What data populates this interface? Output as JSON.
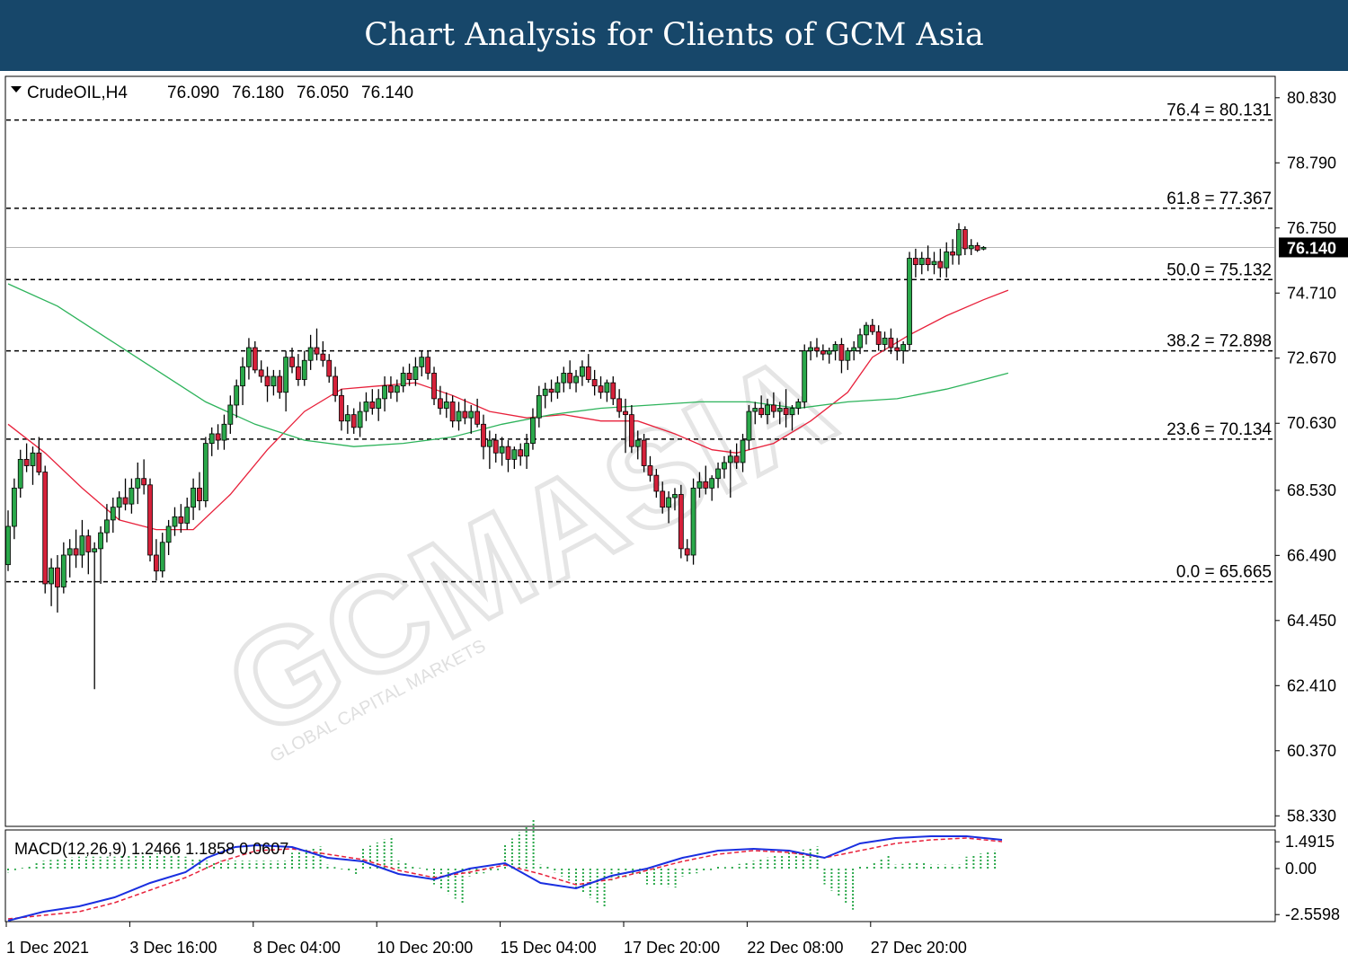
{
  "header": {
    "title": "Chart Analysis for Clients of GCM Asia"
  },
  "chart_data": {
    "type": "candlestick",
    "symbol_line": {
      "symbol": "CrudeOIL,H4",
      "ohlc": [
        "76.090",
        "76.180",
        "76.050",
        "76.140"
      ]
    },
    "price_axis": {
      "ticks": [
        80.83,
        78.79,
        76.75,
        74.71,
        72.67,
        70.63,
        68.53,
        66.49,
        64.45,
        62.41,
        60.37,
        58.33
      ],
      "tick_labels": [
        "80.830",
        "78.790",
        "76.750",
        "74.710",
        "72.670",
        "70.630",
        "68.530",
        "66.490",
        "64.450",
        "62.410",
        "60.370",
        "58.330"
      ],
      "range": [
        58.0,
        81.5
      ]
    },
    "current_price": {
      "value": 76.14,
      "label": "76.140"
    },
    "fibonacci": [
      {
        "level": "76.4",
        "price": 80.131,
        "label": "76.4 = 80.131"
      },
      {
        "level": "61.8",
        "price": 77.367,
        "label": "61.8 = 77.367"
      },
      {
        "level": "50.0",
        "price": 75.132,
        "label": "50.0 = 75.132"
      },
      {
        "level": "38.2",
        "price": 72.898,
        "label": "38.2 = 72.898"
      },
      {
        "level": "23.6",
        "price": 70.134,
        "label": "23.6 = 70.134"
      },
      {
        "level": "0.0",
        "price": 65.665,
        "label": "0.0 = 65.665"
      }
    ],
    "time_axis": {
      "labels": [
        "1 Dec 2021",
        "3 Dec 16:00",
        "8 Dec 04:00",
        "10 Dec 20:00",
        "15 Dec 04:00",
        "17 Dec 20:00",
        "22 Dec 08:00",
        "27 Dec 20:00"
      ],
      "label_bar_index": [
        0,
        20,
        40,
        60,
        80,
        100,
        120,
        140
      ]
    },
    "candles": [
      [
        66.2,
        67.9,
        66.0,
        67.4
      ],
      [
        67.4,
        68.9,
        67.0,
        68.6
      ],
      [
        68.6,
        69.8,
        68.3,
        69.5
      ],
      [
        69.5,
        70.0,
        69.1,
        69.3
      ],
      [
        69.3,
        69.9,
        68.7,
        69.7
      ],
      [
        69.7,
        70.2,
        69.0,
        69.1
      ],
      [
        69.1,
        69.3,
        65.3,
        65.6
      ],
      [
        65.6,
        66.4,
        64.9,
        66.1
      ],
      [
        66.1,
        66.5,
        64.7,
        65.5
      ],
      [
        65.5,
        66.9,
        65.3,
        66.5
      ],
      [
        66.5,
        67.0,
        65.8,
        66.7
      ],
      [
        66.7,
        67.3,
        66.1,
        66.5
      ],
      [
        66.5,
        67.6,
        66.1,
        67.1
      ],
      [
        67.1,
        67.3,
        65.9,
        66.6
      ],
      [
        66.6,
        66.9,
        62.3,
        66.7
      ],
      [
        66.7,
        67.4,
        65.6,
        67.2
      ],
      [
        67.2,
        68.1,
        66.9,
        67.6
      ],
      [
        67.6,
        68.3,
        67.2,
        68.0
      ],
      [
        68.0,
        68.5,
        67.6,
        68.3
      ],
      [
        68.3,
        68.9,
        67.9,
        68.1
      ],
      [
        68.1,
        68.9,
        67.8,
        68.6
      ],
      [
        68.6,
        69.4,
        68.1,
        68.9
      ],
      [
        68.9,
        69.5,
        68.4,
        68.7
      ],
      [
        68.7,
        68.9,
        66.3,
        66.5
      ],
      [
        66.5,
        67.0,
        65.7,
        66.0
      ],
      [
        66.0,
        67.2,
        65.8,
        66.9
      ],
      [
        66.9,
        67.6,
        66.5,
        67.4
      ],
      [
        67.4,
        68.0,
        67.1,
        67.7
      ],
      [
        67.7,
        68.1,
        67.2,
        67.5
      ],
      [
        67.5,
        68.3,
        67.3,
        68.0
      ],
      [
        68.0,
        68.9,
        67.6,
        68.6
      ],
      [
        68.6,
        69.1,
        67.9,
        68.2
      ],
      [
        68.2,
        70.2,
        68.0,
        70.0
      ],
      [
        70.0,
        70.5,
        69.6,
        70.3
      ],
      [
        70.3,
        70.6,
        69.8,
        70.1
      ],
      [
        70.1,
        70.9,
        69.8,
        70.6
      ],
      [
        70.6,
        71.5,
        70.3,
        71.2
      ],
      [
        71.2,
        72.0,
        70.8,
        71.8
      ],
      [
        71.8,
        72.7,
        71.2,
        72.4
      ],
      [
        72.4,
        73.3,
        72.0,
        73.0
      ],
      [
        73.0,
        73.2,
        72.2,
        72.3
      ],
      [
        72.3,
        72.6,
        71.9,
        72.1
      ],
      [
        72.1,
        72.4,
        71.3,
        71.8
      ],
      [
        71.8,
        72.3,
        71.5,
        72.1
      ],
      [
        72.1,
        72.3,
        71.4,
        71.6
      ],
      [
        71.6,
        72.9,
        71.0,
        72.7
      ],
      [
        72.7,
        73.0,
        72.2,
        72.4
      ],
      [
        72.4,
        72.8,
        71.8,
        72.0
      ],
      [
        72.0,
        72.9,
        71.8,
        72.6
      ],
      [
        72.6,
        73.4,
        72.3,
        73.0
      ],
      [
        73.0,
        73.6,
        72.6,
        72.8
      ],
      [
        72.8,
        73.2,
        72.4,
        72.6
      ],
      [
        72.6,
        72.8,
        71.9,
        72.1
      ],
      [
        72.1,
        72.4,
        71.3,
        71.5
      ],
      [
        71.5,
        71.7,
        70.4,
        70.7
      ],
      [
        70.7,
        71.2,
        70.3,
        70.9
      ],
      [
        70.9,
        71.1,
        70.3,
        70.5
      ],
      [
        70.5,
        71.3,
        70.2,
        71.0
      ],
      [
        71.0,
        71.6,
        70.7,
        71.3
      ],
      [
        71.3,
        71.7,
        70.9,
        71.1
      ],
      [
        71.1,
        71.7,
        70.7,
        71.4
      ],
      [
        71.4,
        72.1,
        71.0,
        71.8
      ],
      [
        71.8,
        72.1,
        71.4,
        71.6
      ],
      [
        71.6,
        72.0,
        71.3,
        71.8
      ],
      [
        71.8,
        72.4,
        71.6,
        72.2
      ],
      [
        72.2,
        72.5,
        71.8,
        72.0
      ],
      [
        72.0,
        72.7,
        71.8,
        72.4
      ],
      [
        72.4,
        72.9,
        72.1,
        72.7
      ],
      [
        72.7,
        72.9,
        72.0,
        72.2
      ],
      [
        72.2,
        72.4,
        71.2,
        71.4
      ],
      [
        71.4,
        71.8,
        70.9,
        71.1
      ],
      [
        71.1,
        71.6,
        70.8,
        71.3
      ],
      [
        71.3,
        71.5,
        70.5,
        70.7
      ],
      [
        70.7,
        71.3,
        70.4,
        71.0
      ],
      [
        71.0,
        71.4,
        70.6,
        70.8
      ],
      [
        70.8,
        71.2,
        70.3,
        71.0
      ],
      [
        71.0,
        71.4,
        70.5,
        70.6
      ],
      [
        70.6,
        70.9,
        69.5,
        69.9
      ],
      [
        69.9,
        70.4,
        69.2,
        70.1
      ],
      [
        70.1,
        70.3,
        69.4,
        69.7
      ],
      [
        69.7,
        70.2,
        69.3,
        69.9
      ],
      [
        69.9,
        70.1,
        69.1,
        69.5
      ],
      [
        69.5,
        69.9,
        69.2,
        69.8
      ],
      [
        69.8,
        70.0,
        69.3,
        69.6
      ],
      [
        69.6,
        70.3,
        69.2,
        70.0
      ],
      [
        70.0,
        71.1,
        69.8,
        70.8
      ],
      [
        70.8,
        71.8,
        70.5,
        71.5
      ],
      [
        71.5,
        71.9,
        71.1,
        71.7
      ],
      [
        71.7,
        72.0,
        71.3,
        71.6
      ],
      [
        71.6,
        72.1,
        71.4,
        71.9
      ],
      [
        71.9,
        72.4,
        71.6,
        72.2
      ],
      [
        72.2,
        72.6,
        71.7,
        71.9
      ],
      [
        71.9,
        72.3,
        71.6,
        72.1
      ],
      [
        72.1,
        72.6,
        71.8,
        72.4
      ],
      [
        72.4,
        72.8,
        71.9,
        72.0
      ],
      [
        72.0,
        72.3,
        71.5,
        71.8
      ],
      [
        71.8,
        72.1,
        71.4,
        71.6
      ],
      [
        71.6,
        72.0,
        71.3,
        71.9
      ],
      [
        71.9,
        72.1,
        71.2,
        71.4
      ],
      [
        71.4,
        71.7,
        70.8,
        71.0
      ],
      [
        71.0,
        71.4,
        69.7,
        70.9
      ],
      [
        70.9,
        71.2,
        69.7,
        69.9
      ],
      [
        69.9,
        70.4,
        69.5,
        70.1
      ],
      [
        70.1,
        70.3,
        69.1,
        69.3
      ],
      [
        69.3,
        69.6,
        68.8,
        69.0
      ],
      [
        69.0,
        69.2,
        68.3,
        68.5
      ],
      [
        68.5,
        68.8,
        67.8,
        68.0
      ],
      [
        68.0,
        68.5,
        67.5,
        68.3
      ],
      [
        68.3,
        68.6,
        67.9,
        68.4
      ],
      [
        68.4,
        68.7,
        66.4,
        66.7
      ],
      [
        66.7,
        67.0,
        66.3,
        66.5
      ],
      [
        66.5,
        68.9,
        66.2,
        68.6
      ],
      [
        68.6,
        69.1,
        68.3,
        68.8
      ],
      [
        68.8,
        69.3,
        68.4,
        68.6
      ],
      [
        68.6,
        69.0,
        68.2,
        68.9
      ],
      [
        68.9,
        69.4,
        68.6,
        69.2
      ],
      [
        69.2,
        69.6,
        68.9,
        69.4
      ],
      [
        69.4,
        69.8,
        68.3,
        69.6
      ],
      [
        69.6,
        70.0,
        69.2,
        69.4
      ],
      [
        69.4,
        70.3,
        69.1,
        70.1
      ],
      [
        70.1,
        71.2,
        69.8,
        71.0
      ],
      [
        71.0,
        71.3,
        70.6,
        71.1
      ],
      [
        71.1,
        71.5,
        70.8,
        70.9
      ],
      [
        70.9,
        71.4,
        70.6,
        71.2
      ],
      [
        71.2,
        71.6,
        70.8,
        71.0
      ],
      [
        71.0,
        71.3,
        70.6,
        71.1
      ],
      [
        71.1,
        71.7,
        70.5,
        70.9
      ],
      [
        70.9,
        71.2,
        70.4,
        71.1
      ],
      [
        71.1,
        71.4,
        70.9,
        71.3
      ],
      [
        71.3,
        73.1,
        71.1,
        72.9
      ],
      [
        72.9,
        73.2,
        72.6,
        73.0
      ],
      [
        73.0,
        73.3,
        72.7,
        72.9
      ],
      [
        72.9,
        73.1,
        72.6,
        72.8
      ],
      [
        72.8,
        73.0,
        72.5,
        72.9
      ],
      [
        72.9,
        73.2,
        72.6,
        73.1
      ],
      [
        73.1,
        73.3,
        72.2,
        72.6
      ],
      [
        72.6,
        73.0,
        72.3,
        72.9
      ],
      [
        72.9,
        73.2,
        72.6,
        73.0
      ],
      [
        73.0,
        73.6,
        72.8,
        73.4
      ],
      [
        73.4,
        73.8,
        73.1,
        73.7
      ],
      [
        73.7,
        73.9,
        73.4,
        73.5
      ],
      [
        73.5,
        73.7,
        72.9,
        73.1
      ],
      [
        73.1,
        73.5,
        72.9,
        73.3
      ],
      [
        73.3,
        73.6,
        72.8,
        73.0
      ],
      [
        73.0,
        73.3,
        72.6,
        72.9
      ],
      [
        72.9,
        73.2,
        72.5,
        73.1
      ],
      [
        73.1,
        76.0,
        72.9,
        75.8
      ],
      [
        75.8,
        76.1,
        75.2,
        75.6
      ],
      [
        75.6,
        76.0,
        75.3,
        75.8
      ],
      [
        75.8,
        76.2,
        75.4,
        75.6
      ],
      [
        75.6,
        76.0,
        75.3,
        75.7
      ],
      [
        75.7,
        76.1,
        75.2,
        75.5
      ],
      [
        75.5,
        76.3,
        75.2,
        76.0
      ],
      [
        76.0,
        76.4,
        75.6,
        75.9
      ],
      [
        75.9,
        76.9,
        75.6,
        76.7
      ],
      [
        76.7,
        76.8,
        75.9,
        76.1
      ],
      [
        76.1,
        76.4,
        75.9,
        76.2
      ],
      [
        76.2,
        76.3,
        76.0,
        76.05
      ],
      [
        76.09,
        76.18,
        76.05,
        76.14
      ]
    ],
    "moving_averages": [
      {
        "color": "#e8213b",
        "points": [
          [
            0,
            70.6
          ],
          [
            6,
            69.7
          ],
          [
            12,
            68.6
          ],
          [
            18,
            67.6
          ],
          [
            24,
            67.3
          ],
          [
            30,
            67.3
          ],
          [
            36,
            68.4
          ],
          [
            42,
            69.8
          ],
          [
            48,
            71.0
          ],
          [
            54,
            71.7
          ],
          [
            60,
            71.8
          ],
          [
            66,
            71.9
          ],
          [
            72,
            71.5
          ],
          [
            78,
            71.0
          ],
          [
            84,
            70.8
          ],
          [
            90,
            70.9
          ],
          [
            96,
            70.7
          ],
          [
            102,
            70.7
          ],
          [
            108,
            70.3
          ],
          [
            114,
            69.8
          ],
          [
            118,
            69.7
          ],
          [
            124,
            70.0
          ],
          [
            130,
            70.7
          ],
          [
            136,
            71.6
          ],
          [
            140,
            72.7
          ],
          [
            146,
            73.4
          ],
          [
            152,
            74.0
          ],
          [
            158,
            74.5
          ],
          [
            162,
            74.8
          ]
        ]
      },
      {
        "color": "#2db35b",
        "points": [
          [
            0,
            75.0
          ],
          [
            8,
            74.3
          ],
          [
            16,
            73.3
          ],
          [
            24,
            72.3
          ],
          [
            32,
            71.3
          ],
          [
            40,
            70.6
          ],
          [
            48,
            70.1
          ],
          [
            56,
            69.9
          ],
          [
            64,
            70.0
          ],
          [
            72,
            70.2
          ],
          [
            80,
            70.6
          ],
          [
            88,
            70.9
          ],
          [
            96,
            71.1
          ],
          [
            104,
            71.2
          ],
          [
            112,
            71.3
          ],
          [
            120,
            71.3
          ],
          [
            128,
            71.1
          ],
          [
            136,
            71.3
          ],
          [
            144,
            71.4
          ],
          [
            152,
            71.7
          ],
          [
            158,
            72.0
          ],
          [
            162,
            72.2
          ]
        ]
      }
    ],
    "macd": {
      "label": "MACD(12,26,9) 1.2466 1.1858 0.0607",
      "ticks": [
        1.4915,
        0.0,
        -2.5598
      ],
      "tick_labels": [
        "1.4915",
        "0.00",
        "-2.5598"
      ],
      "range": [
        -2.9,
        2.0
      ],
      "blue": [
        [
          0,
          -2.9
        ],
        [
          10,
          -2.4
        ],
        [
          20,
          -2.1
        ],
        [
          30,
          -1.6
        ],
        [
          40,
          -0.8
        ],
        [
          50,
          -0.2
        ],
        [
          56,
          0.6
        ],
        [
          64,
          1.2
        ],
        [
          70,
          1.3
        ],
        [
          80,
          1.2
        ],
        [
          90,
          0.6
        ],
        [
          100,
          0.4
        ],
        [
          110,
          -0.3
        ],
        [
          120,
          -0.6
        ],
        [
          130,
          0.0
        ],
        [
          140,
          0.3
        ],
        [
          150,
          -0.8
        ],
        [
          160,
          -1.1
        ],
        [
          170,
          -0.4
        ],
        [
          180,
          0.0
        ],
        [
          190,
          0.6
        ],
        [
          200,
          1.0
        ],
        [
          210,
          1.1
        ],
        [
          220,
          1.0
        ],
        [
          230,
          0.6
        ],
        [
          240,
          1.4
        ],
        [
          250,
          1.7
        ],
        [
          260,
          1.8
        ],
        [
          270,
          1.8
        ],
        [
          280,
          1.6
        ]
      ],
      "red": [
        [
          0,
          -2.8
        ],
        [
          10,
          -2.6
        ],
        [
          20,
          -2.4
        ],
        [
          30,
          -1.9
        ],
        [
          40,
          -1.2
        ],
        [
          50,
          -0.5
        ],
        [
          60,
          0.4
        ],
        [
          70,
          1.0
        ],
        [
          80,
          1.1
        ],
        [
          90,
          0.8
        ],
        [
          100,
          0.5
        ],
        [
          110,
          -0.1
        ],
        [
          120,
          -0.5
        ],
        [
          130,
          -0.2
        ],
        [
          140,
          0.2
        ],
        [
          150,
          -0.3
        ],
        [
          160,
          -0.9
        ],
        [
          170,
          -0.6
        ],
        [
          180,
          -0.1
        ],
        [
          190,
          0.4
        ],
        [
          200,
          0.8
        ],
        [
          210,
          1.0
        ],
        [
          220,
          0.9
        ],
        [
          230,
          0.6
        ],
        [
          240,
          1.0
        ],
        [
          250,
          1.4
        ],
        [
          260,
          1.6
        ],
        [
          270,
          1.7
        ],
        [
          280,
          1.5
        ]
      ]
    },
    "watermark": [
      "GCMASIA",
      "GLOBAL CAPITAL MARKETS"
    ]
  }
}
